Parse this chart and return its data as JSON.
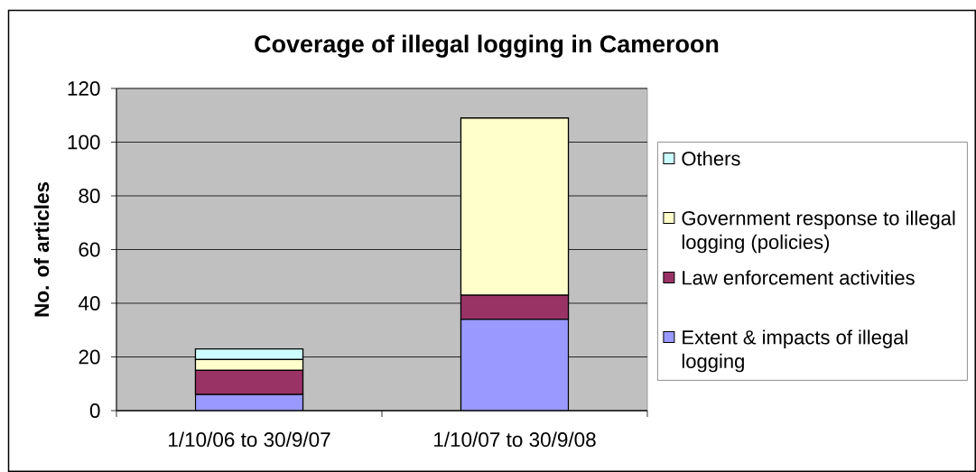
{
  "chart_data": {
    "type": "bar",
    "title": "Coverage of illegal logging in Cameroon",
    "ylabel": "No. of articles",
    "categories": [
      "1/10/06 to 30/9/07",
      "1/10/07 to 30/9/08"
    ],
    "series": [
      {
        "name": "Extent & impacts of illegal logging",
        "color": "#9999ff",
        "values": [
          6,
          34
        ]
      },
      {
        "name": "Law enforcement activities",
        "color": "#993366",
        "values": [
          9,
          9
        ]
      },
      {
        "name": "Government response to illegal logging (policies)",
        "color": "#ffffcc",
        "values": [
          4,
          66
        ]
      },
      {
        "name": "Others",
        "color": "#ccffff",
        "values": [
          4,
          0
        ]
      }
    ],
    "stacked": true,
    "ylim": [
      0,
      120
    ],
    "yticks": [
      0,
      20,
      40,
      60,
      80,
      100,
      120
    ],
    "grid": "y",
    "legend": "right"
  }
}
